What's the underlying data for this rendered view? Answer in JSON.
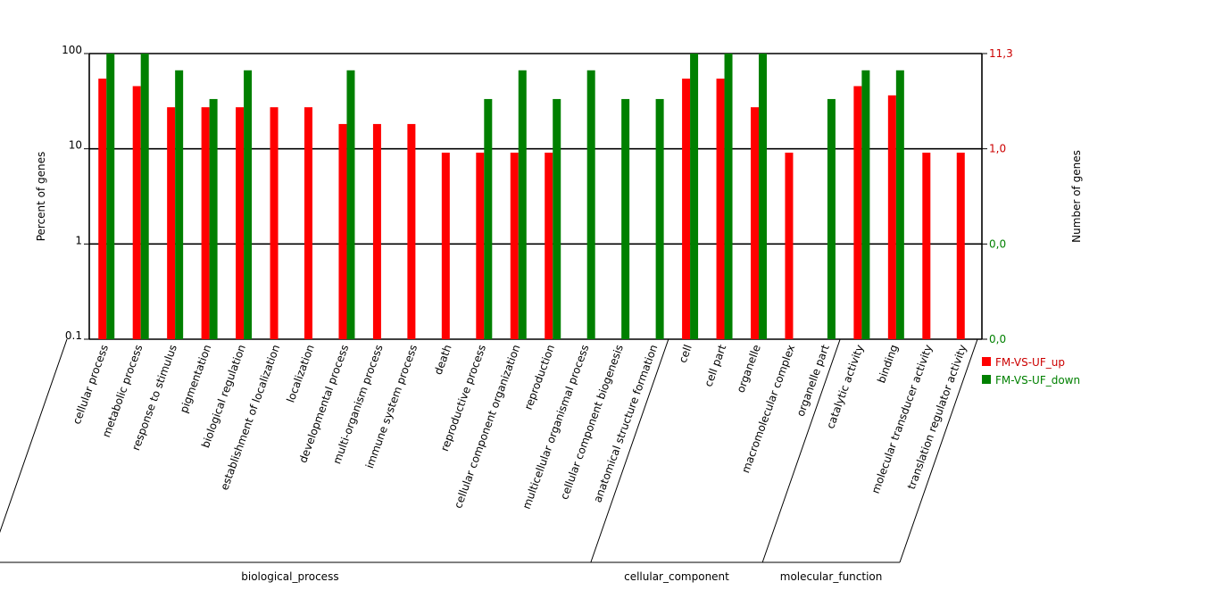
{
  "colors": {
    "up": "#ff0000",
    "down": "#008000",
    "right_tick": "#cc0000",
    "right_tick_base": "#008000"
  },
  "chart_data": {
    "type": "bar",
    "yscale": "log",
    "ylim": [
      0.1,
      100
    ],
    "ylabel": "Percent of genes",
    "ylabel_right": "Number of genes",
    "yticks": [
      "100",
      "10",
      "1",
      "0.1"
    ],
    "yticks_right": [
      "11,3",
      "1,0",
      "0,0",
      "0,0"
    ],
    "categories": [
      "cellular process",
      "metabolic process",
      "response to stimulus",
      "pigmentation",
      "biological regulation",
      "establishment of localization",
      "localization",
      "developmental process",
      "multi-organism process",
      "immune system process",
      "death",
      "reproductive process",
      "cellular component organization",
      "reproduction",
      "multicellular organismal process",
      "cellular component biogenesis",
      "anatomical structure formation",
      "cell",
      "cell part",
      "organelle",
      "macromolecular complex",
      "organelle part",
      "catalytic activity",
      "binding",
      "molecular transducer activity",
      "translation regulator activity"
    ],
    "series": [
      {
        "name": "FM-VS-UF_up",
        "values": [
          54.5,
          45.5,
          27.3,
          27.3,
          27.3,
          27.3,
          27.3,
          18.2,
          18.2,
          18.2,
          9.1,
          9.1,
          9.1,
          9.1,
          0,
          0,
          0,
          54.5,
          54.5,
          27.3,
          9.1,
          0,
          45.5,
          36.4,
          9.1,
          9.1
        ]
      },
      {
        "name": "FM-VS-UF_down",
        "values": [
          100,
          100,
          66.7,
          33.3,
          66.7,
          0,
          0,
          66.7,
          0,
          0,
          0,
          33.3,
          66.7,
          33.3,
          66.7,
          33.3,
          33.3,
          100,
          100,
          100,
          0,
          33.3,
          66.7,
          66.7,
          0,
          0
        ]
      }
    ],
    "groups": [
      {
        "name": "biological_process",
        "count": 17
      },
      {
        "name": "cellular_component",
        "count": 5
      },
      {
        "name": "molecular_function",
        "count": 4
      }
    ],
    "legend": "right"
  }
}
